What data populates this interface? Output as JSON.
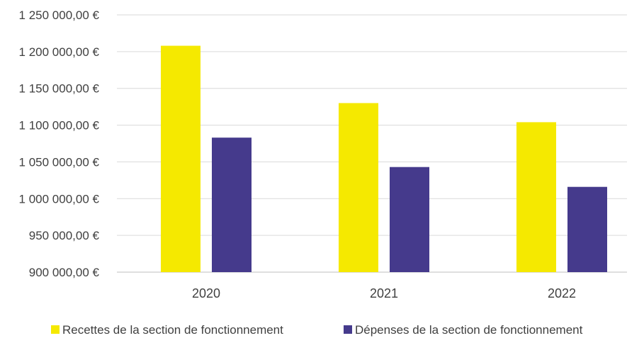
{
  "chart_data": {
    "type": "bar",
    "categories": [
      "2020",
      "2021",
      "2022"
    ],
    "series": [
      {
        "name": "Recettes de la section de fonctionnement",
        "values": [
          1208000,
          1130000,
          1104000
        ],
        "color": "#f5e900"
      },
      {
        "name": "Dépenses de la section de fonctionnement",
        "values": [
          1083000,
          1043000,
          1016000
        ],
        "color": "#453a8c"
      }
    ],
    "ylim": [
      900000,
      1250000
    ],
    "yticks": [
      900000,
      950000,
      1000000,
      1050000,
      1100000,
      1150000,
      1200000,
      1250000
    ],
    "ytick_labels": [
      "900 000,00 €",
      "950 000,00 €",
      "1 000 000,00 €",
      "1 050 000,00 €",
      "1 100 000,00 €",
      "1 150 000,00 €",
      "1 200 000,00 €",
      "1 250 000,00 €"
    ],
    "grid": true,
    "legend_position": "bottom"
  }
}
